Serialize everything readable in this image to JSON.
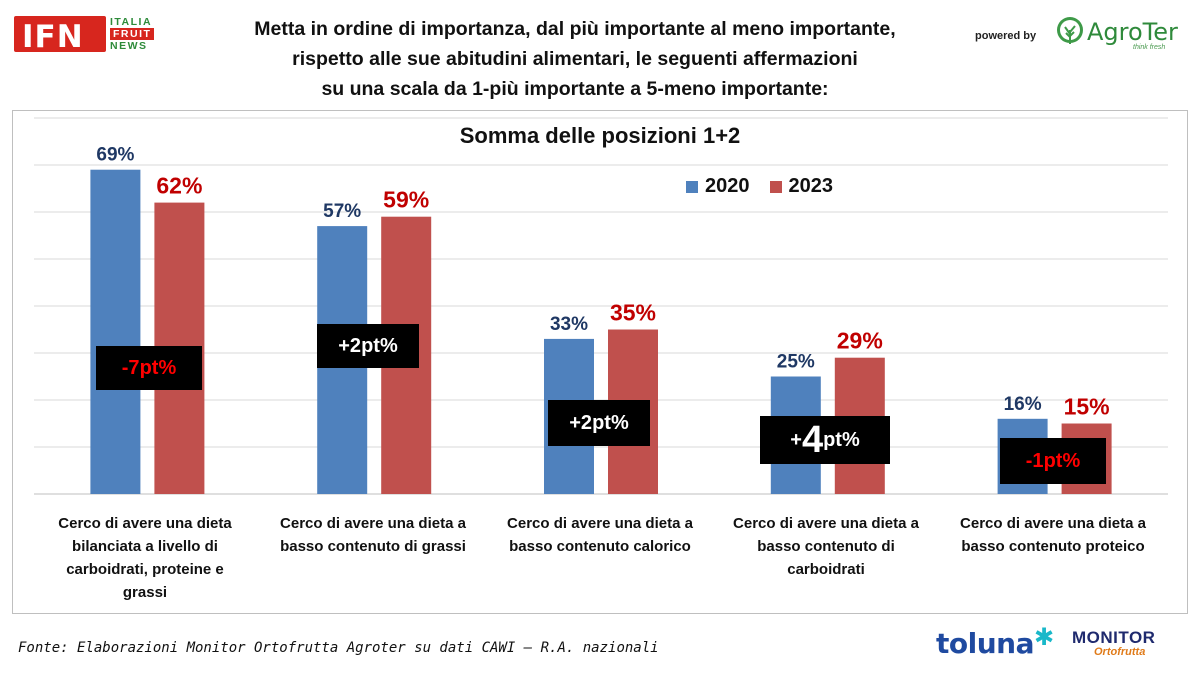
{
  "header": {
    "logo_left": {
      "main": "IFN",
      "line1": "ITALIA",
      "line2": "FRUIT",
      "line3": "NEWS"
    },
    "title_lines": [
      "Metta in ordine di importanza, dal più importante al meno importante,",
      "rispetto alle sue abitudini alimentari, le seguenti affermazioni",
      "su una scala da 1-più importante a 5-meno importante:"
    ],
    "powered_by": "powered by",
    "logo_right": {
      "name": "AgroTer",
      "tagline": "think fresh"
    }
  },
  "chart_data": {
    "type": "bar",
    "title": "Somma delle posizioni 1+2",
    "categories": [
      "Cerco di avere una dieta bilanciata a livello di carboidrati, proteine e grassi",
      "Cerco di avere una dieta a basso contenuto di grassi",
      "Cerco di avere una dieta a basso contenuto calorico",
      "Cerco di avere una dieta a basso contenuto di carboidrati",
      "Cerco di avere una dieta a basso contenuto proteico"
    ],
    "category_lines": [
      [
        "Cerco di avere una dieta",
        "bilanciata a livello di",
        "carboidrati, proteine e",
        "grassi"
      ],
      [
        "Cerco di avere una dieta a",
        "basso contenuto di grassi"
      ],
      [
        "Cerco di avere una dieta a",
        "basso contenuto calorico"
      ],
      [
        "Cerco di avere una dieta a",
        "basso contenuto di",
        "carboidrati"
      ],
      [
        "Cerco di avere una dieta a",
        "basso contenuto proteico"
      ]
    ],
    "series": [
      {
        "name": "2020",
        "color": "#4f81bd",
        "label_color": "#1f3864",
        "values": [
          69,
          57,
          33,
          25,
          16
        ],
        "labels": [
          "69%",
          "57%",
          "33%",
          "25%",
          "16%"
        ]
      },
      {
        "name": "2023",
        "color": "#c0504d",
        "label_color": "#c00000",
        "values": [
          62,
          59,
          35,
          29,
          15
        ],
        "labels": [
          "62%",
          "59%",
          "35%",
          "29%",
          "15%"
        ]
      }
    ],
    "deltas": [
      {
        "prefix": "",
        "number": "-7",
        "suffix": "pt%",
        "color": "#ff0000"
      },
      {
        "prefix": "",
        "number": "+2",
        "suffix": "pt%",
        "color": "#ffffff"
      },
      {
        "prefix": "",
        "number": "+2",
        "suffix": "pt%",
        "color": "#ffffff"
      },
      {
        "prefix": "+",
        "number": "4",
        "suffix": "pt%",
        "color": "#ffffff"
      },
      {
        "prefix": "",
        "number": "-1",
        "suffix": "pt%",
        "color": "#ff0000"
      }
    ],
    "ylim": [
      0,
      80
    ],
    "grid": true,
    "legend": "top-right",
    "xlabel": "",
    "ylabel": ""
  },
  "footer": {
    "source": "Fonte: Elaborazioni Monitor Ortofrutta Agroter su dati CAWI – R.A. nazionali",
    "logo1": "toluna",
    "logo2": {
      "top": "MONITOR",
      "bottom": "Ortofrutta"
    }
  }
}
